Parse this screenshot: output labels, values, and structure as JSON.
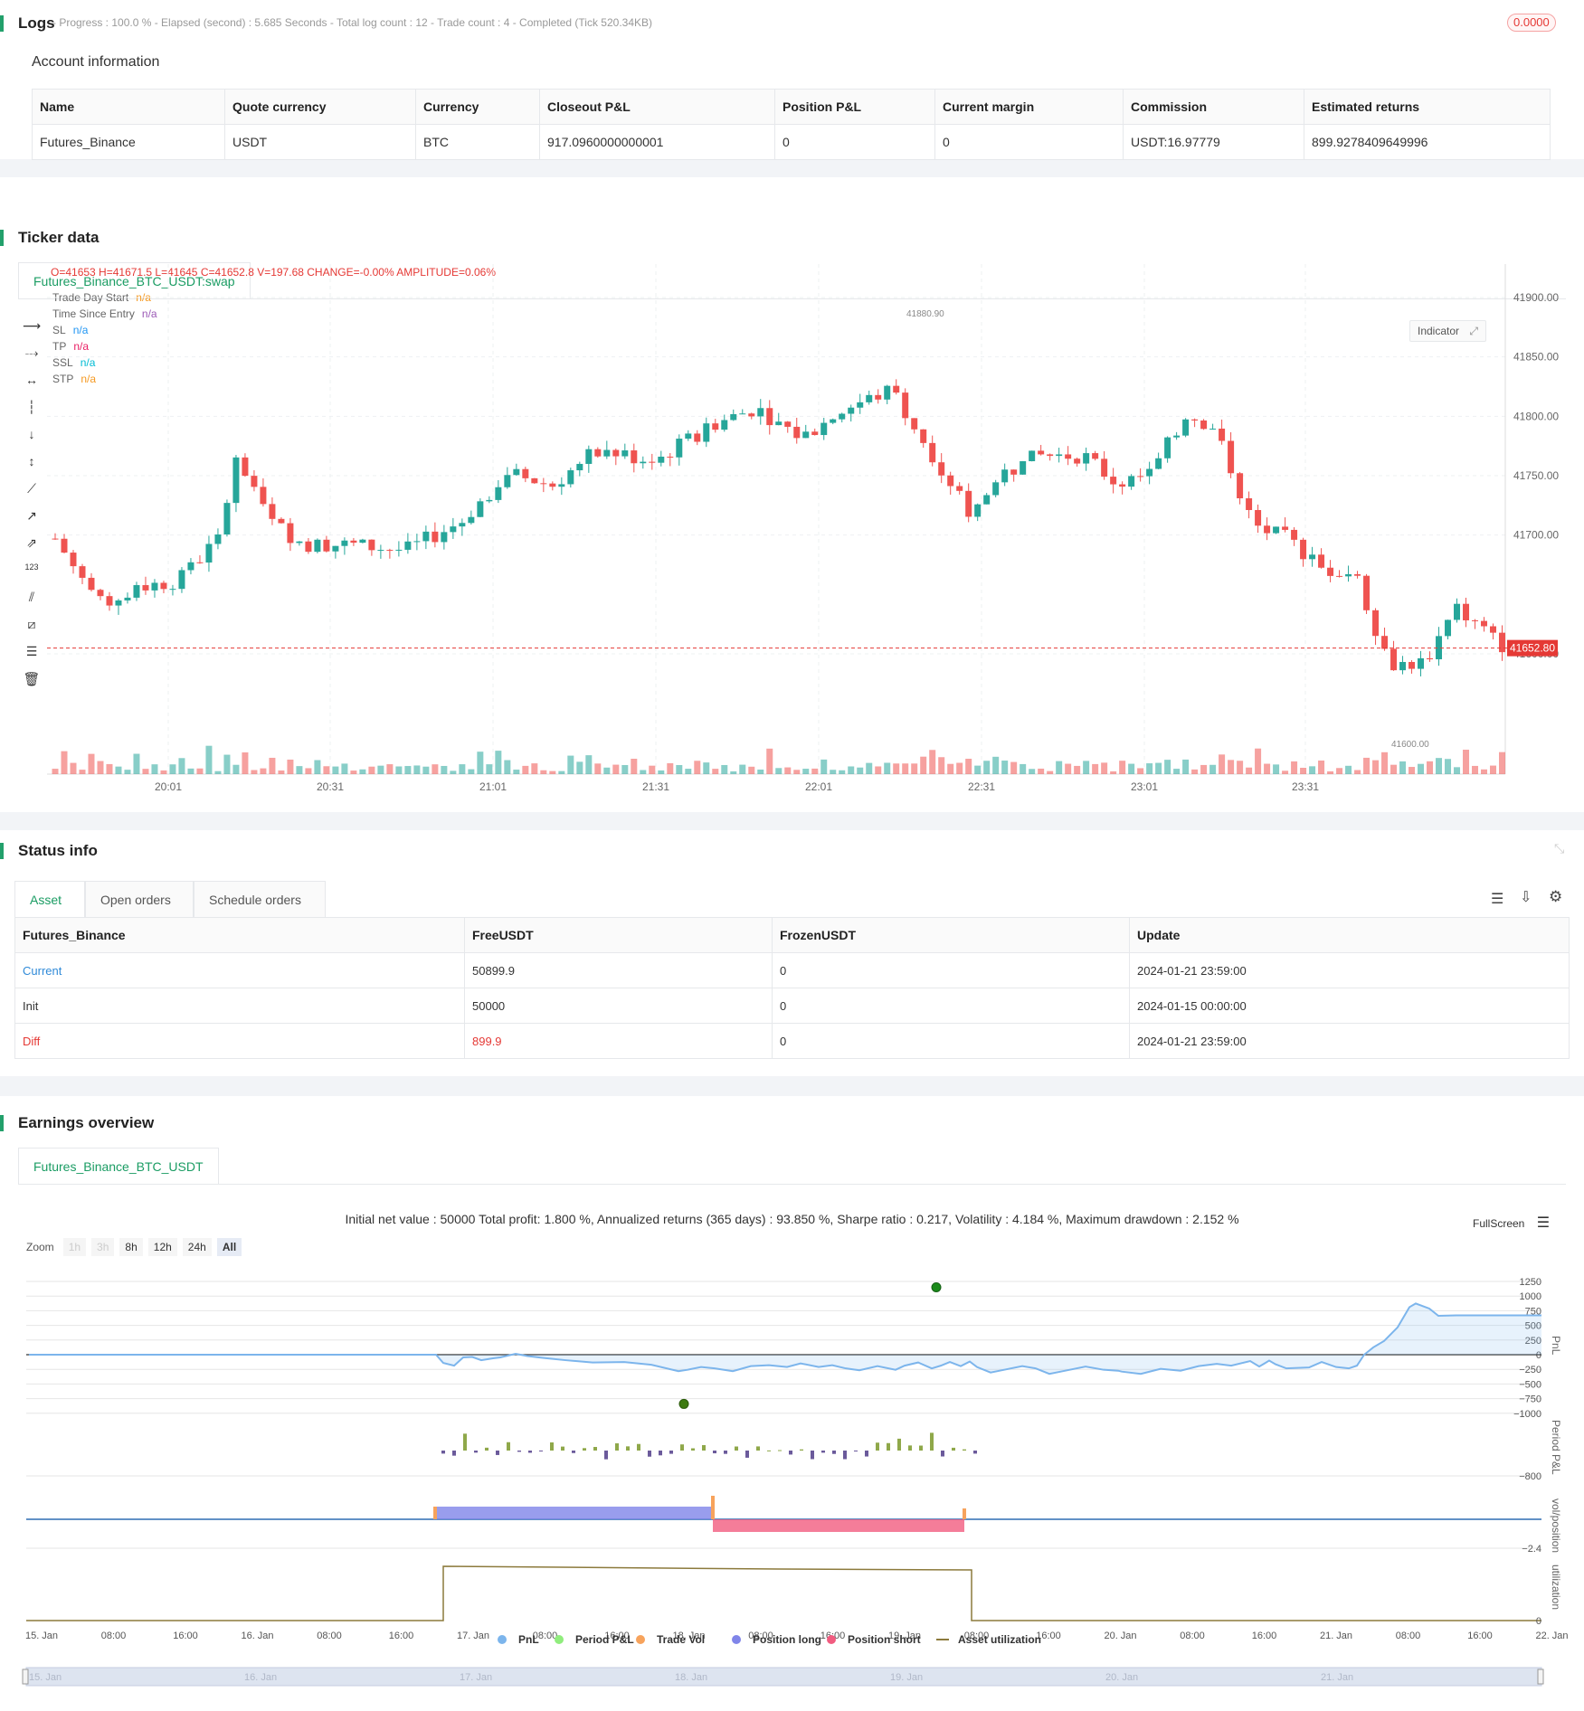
{
  "logs": {
    "title": "Logs",
    "status_line": "- Progress : 100.0 % - Elapsed (second) : 5.685 Seconds - Total log count : 12 - Trade count : 4 - Completed (Tick 520.34KB)",
    "badge": "0.0000"
  },
  "account": {
    "title": "Account information",
    "headers": [
      "Name",
      "Quote currency",
      "Currency",
      "Closeout P&L",
      "Position P&L",
      "Current margin",
      "Commission",
      "Estimated returns"
    ],
    "row": [
      "Futures_Binance",
      "USDT",
      "BTC",
      "917.0960000000001",
      "0",
      "0",
      "USDT:16.97779",
      "899.9278409649996"
    ]
  },
  "ticker": {
    "title": "Ticker data",
    "tab": "Futures_Binance_BTC_USDT:swap",
    "ohlc_line": "O=41653 H=41671.5 L=41645 C=41652.8 V=197.68 CHANGE=-0.00% AMPLITUDE=0.06%",
    "indicator_button": "Indicator",
    "legend": [
      {
        "label": "Trade Day Start",
        "value": "n/a",
        "color": "#f59a23"
      },
      {
        "label": "Time Since Entry",
        "value": "n/a",
        "color": "#9b59b6"
      },
      {
        "label": "SL",
        "value": "n/a",
        "color": "#2196f3"
      },
      {
        "label": "TP",
        "value": "n/a",
        "color": "#e91e63"
      },
      {
        "label": "SSL",
        "value": "n/a",
        "color": "#00bcd4"
      },
      {
        "label": "STP",
        "value": "n/a",
        "color": "#f59a23"
      }
    ],
    "price_ticks": [
      "41900.00",
      "41850.00",
      "41800.00",
      "41750.00",
      "41700.00",
      "41600.00"
    ],
    "current_price": "41652.80",
    "high_marker": "41880.90",
    "low_marker": "41600.00",
    "time_ticks": [
      "20:01",
      "20:31",
      "21:01",
      "21:31",
      "22:01",
      "22:31",
      "23:01",
      "23:31"
    ],
    "colors": {
      "up": "#26a69a",
      "down": "#ef5350"
    }
  },
  "status": {
    "title": "Status info",
    "tabs": [
      "Asset",
      "Open orders",
      "Schedule orders"
    ],
    "headers": [
      "Futures_Binance",
      "FreeUSDT",
      "FrozenUSDT",
      "Update"
    ],
    "rows": [
      [
        "Current",
        "50899.9",
        "0",
        "2024-01-21 23:59:00"
      ],
      [
        "Init",
        "50000",
        "0",
        "2024-01-15 00:00:00"
      ],
      [
        "Diff",
        "899.9",
        "0",
        "2024-01-21 23:59:00"
      ]
    ]
  },
  "earnings": {
    "title": "Earnings overview",
    "tab": "Futures_Binance_BTC_USDT",
    "summary": "Initial net value : 50000 Total profit: 1.800 %, Annualized returns (365 days) : 93.850 %, Sharpe ratio : 0.217, Volatility : 4.184 %, Maximum drawdown : 2.152 %",
    "fullscreen": "FullScreen",
    "zoom_label": "Zoom",
    "zoom_buttons": [
      "1h",
      "3h",
      "8h",
      "12h",
      "24h",
      "All"
    ],
    "pnl_ticks": [
      "1250",
      "1000",
      "750",
      "500",
      "250",
      "0",
      "−250",
      "−500",
      "−750",
      "−1000"
    ],
    "period_tick": "−800",
    "vol_tick": "−2.4",
    "util_tick": "0",
    "axis_names": [
      "PnL",
      "Period P&L",
      "vol/position",
      "utilization"
    ],
    "x_ticks": [
      "15. Jan",
      "08:00",
      "16:00",
      "16. Jan",
      "08:00",
      "16:00",
      "17. Jan",
      "08:00",
      "16:00",
      "18. Jan",
      "08:00",
      "16:00",
      "19. Jan",
      "08:00",
      "16:00",
      "20. Jan",
      "08:00",
      "16:00",
      "21. Jan",
      "08:00",
      "16:00",
      "22. Jan"
    ],
    "legend": [
      {
        "label": "PnL",
        "color": "#7cb5ec"
      },
      {
        "label": "Period P&L",
        "color": "#90ed7d"
      },
      {
        "label": "Trade Vol",
        "color": "#f7a35c"
      },
      {
        "label": "Position long",
        "color": "#8085e9"
      },
      {
        "label": "Position short",
        "color": "#f15c80"
      },
      {
        "label": "Asset utilization",
        "color": "#8c7a3c"
      }
    ],
    "navigator_ticks": [
      "15. Jan",
      "16. Jan",
      "17. Jan",
      "18. Jan",
      "19. Jan",
      "20. Jan",
      "21. Jan"
    ]
  }
}
